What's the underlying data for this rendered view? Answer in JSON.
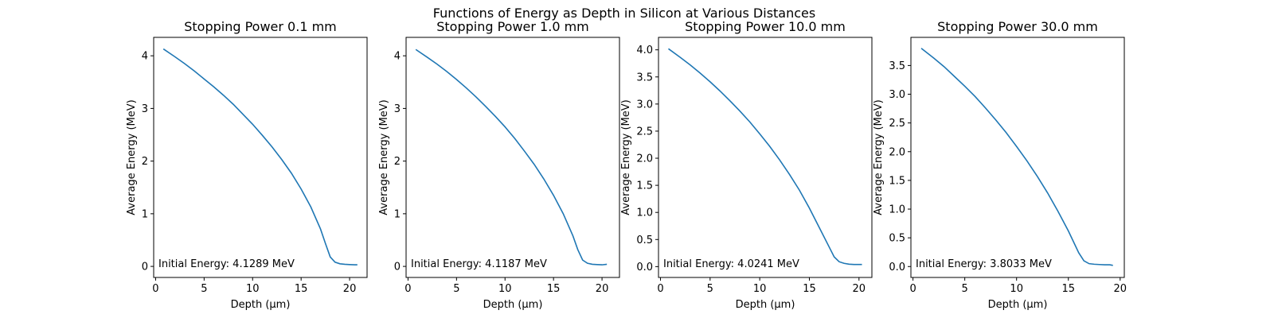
{
  "figure": {
    "suptitle": "Functions of Energy as Depth in Silicon at Various Distances"
  },
  "chart_data": [
    {
      "type": "line",
      "title": "Stopping Power 0.1 mm",
      "xlabel": "Depth (µm)",
      "ylabel": "Average Energy (MeV)",
      "annotation": "Initial Energy: 4.1289 MeV",
      "xlim": [
        -0.2,
        21.8
      ],
      "ylim": [
        -0.21,
        4.35
      ],
      "xticks": [
        0,
        5,
        10,
        15,
        20
      ],
      "xtick_labels": [
        "0",
        "5",
        "10",
        "15",
        "20"
      ],
      "yticks": [
        0,
        1,
        2,
        3,
        4
      ],
      "ytick_labels": [
        "0",
        "1",
        "2",
        "3",
        "4"
      ],
      "grid": false,
      "color": "#1f77b4",
      "x": [
        0.8,
        2,
        3,
        4,
        5,
        6,
        7,
        8,
        9,
        10,
        11,
        12,
        13,
        14,
        15,
        16,
        17,
        17.5,
        18,
        18.5,
        19,
        19.5,
        20,
        20.5,
        20.8
      ],
      "y": [
        4.13,
        3.98,
        3.85,
        3.71,
        3.56,
        3.41,
        3.25,
        3.08,
        2.89,
        2.7,
        2.49,
        2.27,
        2.03,
        1.77,
        1.47,
        1.13,
        0.71,
        0.44,
        0.18,
        0.08,
        0.05,
        0.04,
        0.035,
        0.03,
        0.03
      ]
    },
    {
      "type": "line",
      "title": "Stopping Power 1.0 mm",
      "xlabel": "Depth (µm)",
      "ylabel": "Average Energy (MeV)",
      "annotation": "Initial Energy: 4.1187 MeV",
      "xlim": [
        -0.2,
        21.8
      ],
      "ylim": [
        -0.21,
        4.35
      ],
      "xticks": [
        0,
        5,
        10,
        15,
        20
      ],
      "xtick_labels": [
        "0",
        "5",
        "10",
        "15",
        "20"
      ],
      "yticks": [
        0,
        1,
        2,
        3,
        4
      ],
      "ytick_labels": [
        "0",
        "1",
        "2",
        "3",
        "4"
      ],
      "grid": false,
      "color": "#1f77b4",
      "x": [
        0.8,
        2,
        3,
        4,
        5,
        6,
        7,
        8,
        9,
        10,
        11,
        12,
        13,
        14,
        15,
        16,
        17,
        17.5,
        18,
        18.5,
        19,
        19.5,
        20,
        20.5
      ],
      "y": [
        4.12,
        3.97,
        3.84,
        3.7,
        3.55,
        3.39,
        3.22,
        3.04,
        2.85,
        2.65,
        2.43,
        2.19,
        1.94,
        1.66,
        1.35,
        1.0,
        0.58,
        0.32,
        0.12,
        0.06,
        0.04,
        0.035,
        0.03,
        0.04
      ]
    },
    {
      "type": "line",
      "title": "Stopping Power 10.0 mm",
      "xlabel": "Depth (µm)",
      "ylabel": "Average Energy (MeV)",
      "annotation": "Initial Energy: 4.0241 MeV",
      "xlim": [
        -0.2,
        21.3
      ],
      "ylim": [
        -0.2,
        4.23
      ],
      "xticks": [
        0,
        5,
        10,
        15,
        20
      ],
      "xtick_labels": [
        "0",
        "5",
        "10",
        "15",
        "20"
      ],
      "yticks": [
        0,
        0.5,
        1.0,
        1.5,
        2.0,
        2.5,
        3.0,
        3.5,
        4.0
      ],
      "ytick_labels": [
        "0.0",
        "0.5",
        "1.0",
        "1.5",
        "2.0",
        "2.5",
        "3.0",
        "3.5",
        "4.0"
      ],
      "grid": false,
      "color": "#1f77b4",
      "x": [
        0.8,
        2,
        3,
        4,
        5,
        6,
        7,
        8,
        9,
        10,
        11,
        12,
        13,
        14,
        15,
        16,
        17,
        17.5,
        18,
        18.5,
        19,
        19.5,
        20,
        20.3
      ],
      "y": [
        4.02,
        3.86,
        3.72,
        3.57,
        3.41,
        3.24,
        3.06,
        2.87,
        2.67,
        2.45,
        2.22,
        1.97,
        1.7,
        1.41,
        1.08,
        0.72,
        0.36,
        0.18,
        0.09,
        0.06,
        0.045,
        0.04,
        0.04,
        0.04
      ]
    },
    {
      "type": "line",
      "title": "Stopping Power 30.0 mm",
      "xlabel": "Depth (µm)",
      "ylabel": "Average Energy (MeV)",
      "annotation": "Initial Energy: 3.8033 MeV",
      "xlim": [
        -0.2,
        20.4
      ],
      "ylim": [
        -0.19,
        3.99
      ],
      "xticks": [
        0,
        5,
        10,
        15,
        20
      ],
      "xtick_labels": [
        "0",
        "5",
        "10",
        "15",
        "20"
      ],
      "yticks": [
        0,
        0.5,
        1.0,
        1.5,
        2.0,
        2.5,
        3.0,
        3.5
      ],
      "ytick_labels": [
        "0.0",
        "0.5",
        "1.0",
        "1.5",
        "2.0",
        "2.5",
        "3.0",
        "3.5"
      ],
      "grid": false,
      "color": "#1f77b4",
      "x": [
        0.8,
        2,
        3,
        4,
        5,
        6,
        7,
        8,
        9,
        10,
        11,
        12,
        13,
        14,
        15,
        16,
        16.5,
        17,
        17.5,
        18,
        18.5,
        19,
        19.3
      ],
      "y": [
        3.8,
        3.63,
        3.48,
        3.31,
        3.14,
        2.96,
        2.76,
        2.55,
        2.33,
        2.09,
        1.84,
        1.57,
        1.28,
        0.96,
        0.62,
        0.24,
        0.1,
        0.05,
        0.04,
        0.035,
        0.03,
        0.03,
        0.02
      ]
    }
  ]
}
